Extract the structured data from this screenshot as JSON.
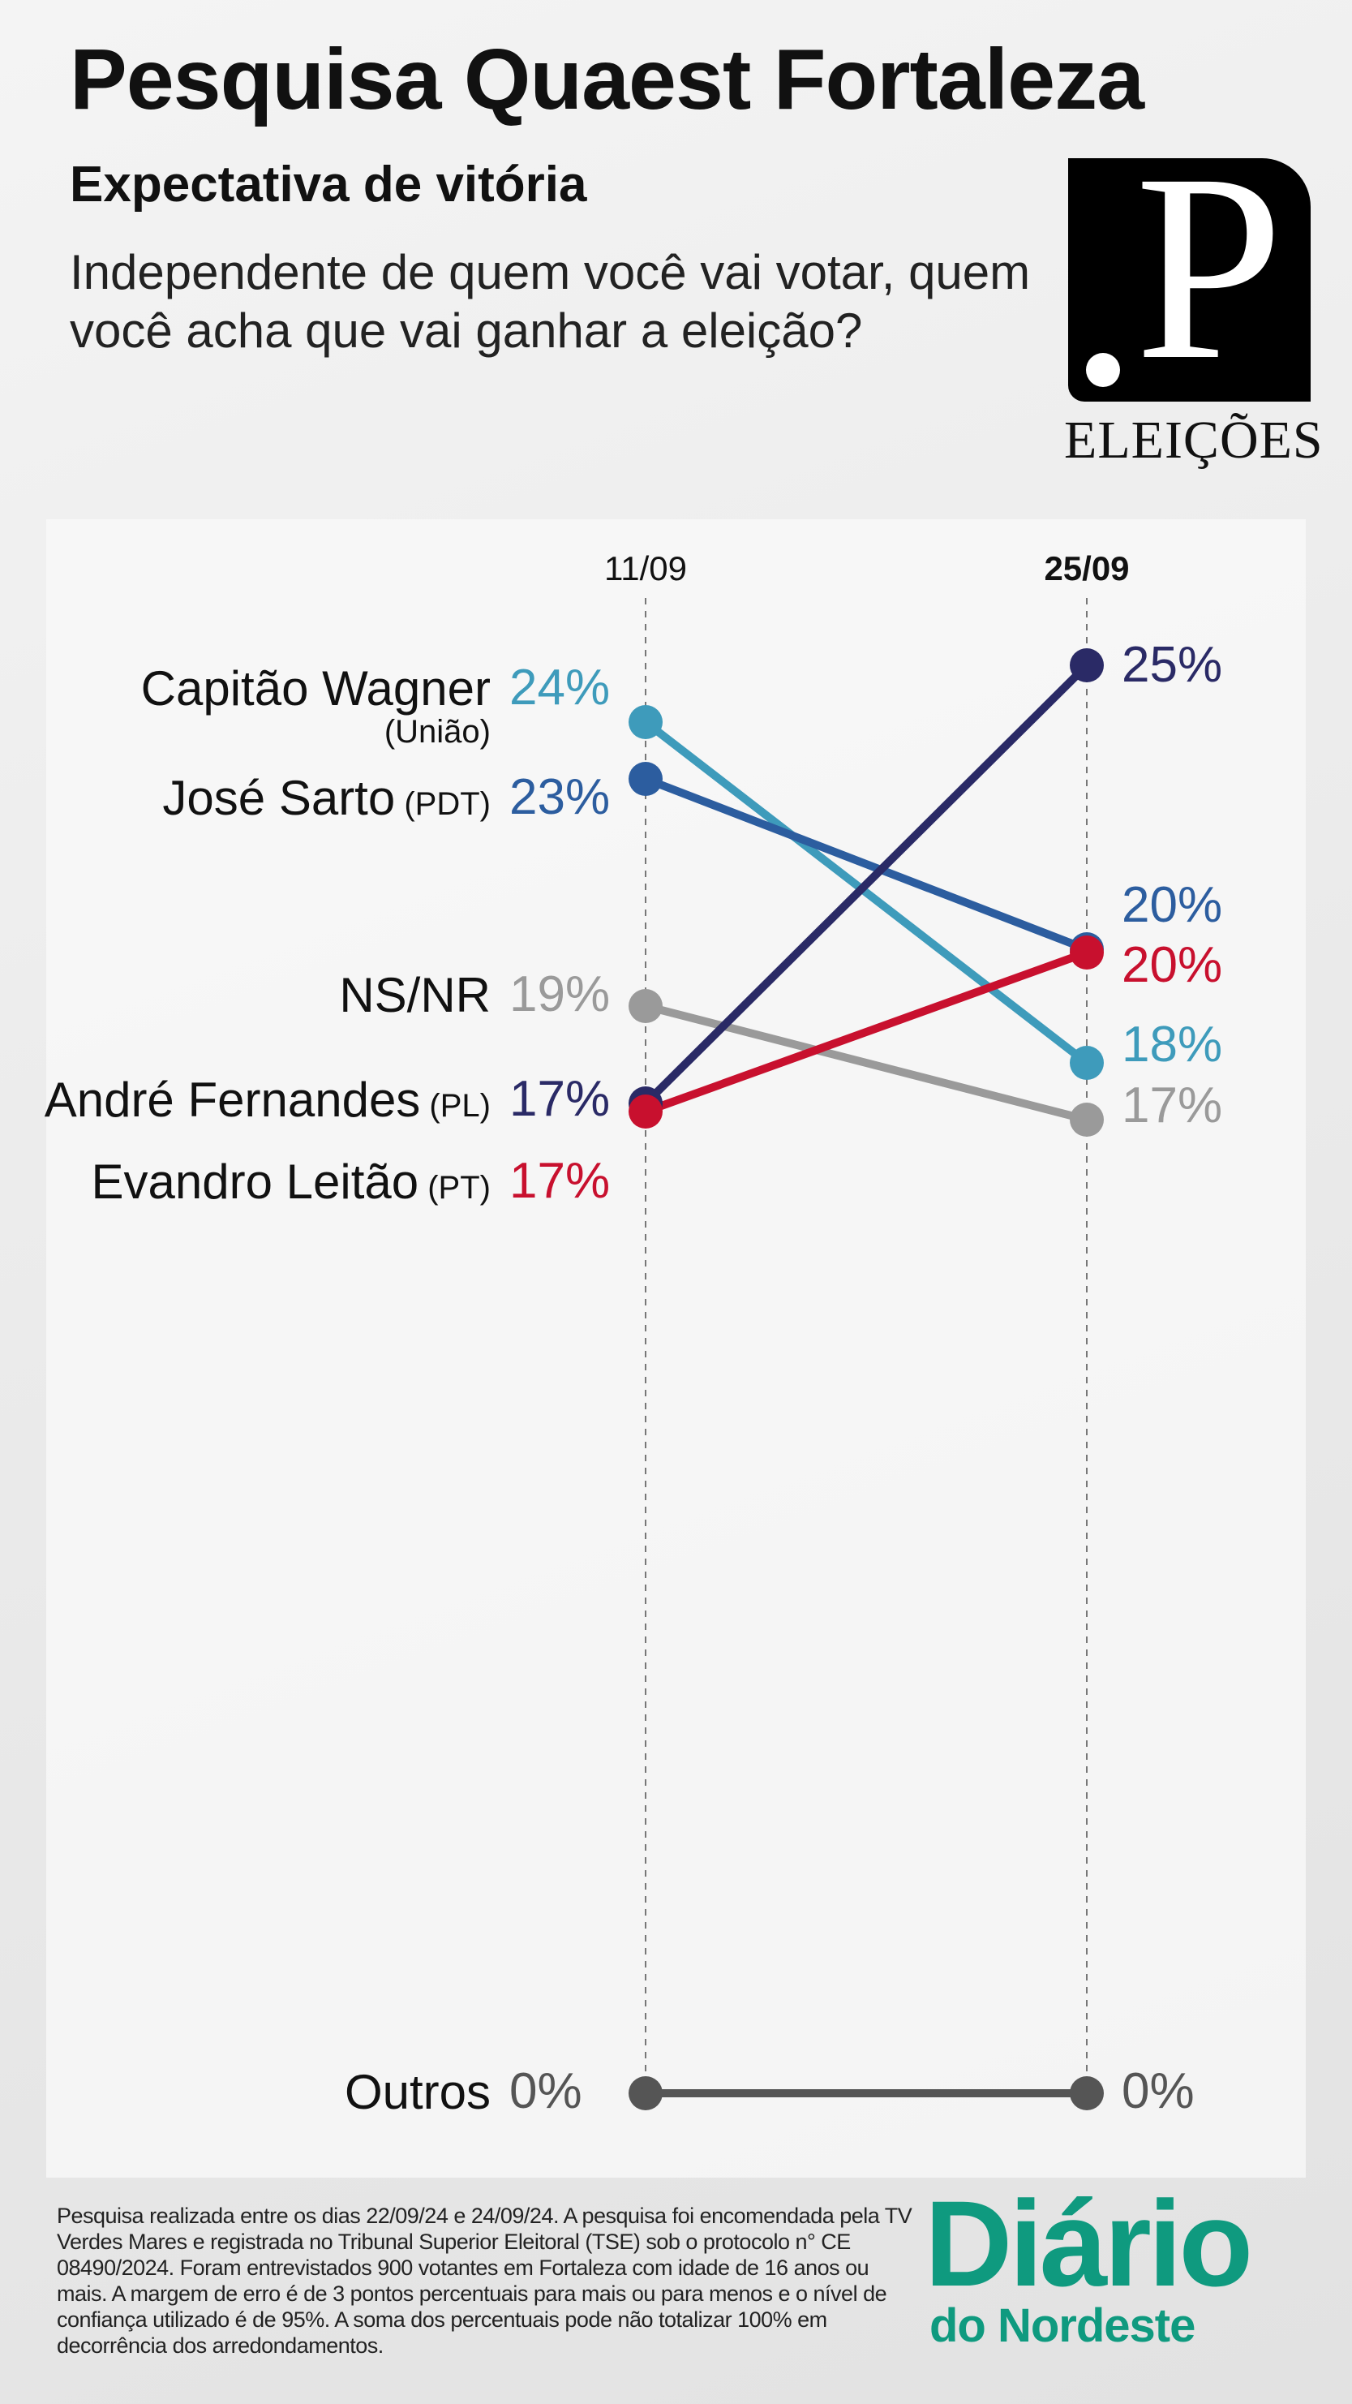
{
  "header": {
    "title": "Pesquisa Quaest Fortaleza",
    "subtitle": "Expectativa de vitória",
    "question": "Independente de quem você vai votar, quem você acha que vai ganhar a eleição?"
  },
  "logo": {
    "mark": ".P",
    "label": "ELEIÇÕES"
  },
  "chart_data": {
    "type": "line",
    "title": "Expectativa de vitória",
    "x": [
      "11/09",
      "25/09"
    ],
    "series": [
      {
        "name": "Capitão Wagner",
        "party": "(União)",
        "values": [
          24,
          18
        ],
        "labels": [
          "24%",
          "18%"
        ],
        "color": "#3e9bbb"
      },
      {
        "name": "José Sarto",
        "party": "(PDT)",
        "values": [
          23,
          20
        ],
        "labels": [
          "23%",
          "20%"
        ],
        "color": "#2c5d9f"
      },
      {
        "name": "NS/NR",
        "party": "",
        "values": [
          19,
          17
        ],
        "labels": [
          "19%",
          "17%"
        ],
        "color": "#9a9a9a"
      },
      {
        "name": "André Fernandes",
        "party": "(PL)",
        "values": [
          17,
          25
        ],
        "labels": [
          "17%",
          "25%"
        ],
        "color": "#2a2a66"
      },
      {
        "name": "Evandro Leitão",
        "party": "(PT)",
        "values": [
          17,
          20
        ],
        "labels": [
          "17%",
          "20%"
        ],
        "color": "#c8102e"
      },
      {
        "name": "Outros",
        "party": "",
        "values": [
          0,
          0
        ],
        "labels": [
          "0%",
          "0%"
        ],
        "color": "#555555"
      }
    ],
    "ylabel": "%",
    "ylim": [
      0,
      25
    ],
    "grid": false
  },
  "footer": {
    "note": "Pesquisa realizada entre os dias 22/09/24 e 24/09/24. A pesquisa foi encomendada pela TV Verdes Mares e registrada no Tribunal Superior Eleitoral (TSE) sob o protocolo n° CE 08490/2024. Foram entrevistados 900 votantes em Fortaleza com idade de 16 anos ou mais. A margem de erro é de 3 pontos percentuais para mais ou para menos e o nível de confiança utilizado é de 95%. A soma dos percentuais pode não totalizar 100% em decorrência dos arredondamentos.",
    "brand_line1": "Diário",
    "brand_line2": "do Nordeste"
  }
}
